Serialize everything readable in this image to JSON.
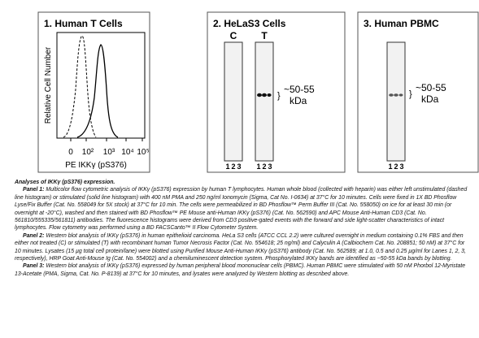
{
  "panels": [
    {
      "title": "1. Human T Cells",
      "y_label": "Relative Cell Number",
      "x_label": "PE IKKγ (pS376)",
      "x_ticks": [
        "0",
        "10²",
        "10³",
        "10⁴",
        "10⁵"
      ]
    },
    {
      "title": "2. HeLaS3 Cells",
      "lane_groups": [
        "C",
        "T"
      ],
      "lanes": [
        "1",
        "2",
        "3"
      ],
      "band_label": [
        "~50-55",
        "kDa"
      ],
      "brace": "}"
    },
    {
      "title": "3. Human PBMC",
      "lanes": [
        "1",
        "2",
        "3"
      ],
      "band_label": [
        "~50-55",
        "kDa"
      ],
      "brace": "}"
    }
  ],
  "caption": {
    "title": "Analyses of IKKγ (pS376) expression.",
    "paragraphs": [
      {
        "label": "Panel 1:",
        "text": "Multicolor flow cytometric analysis of IKKγ (pS376) expression by human T lymphocytes. Human whole blood (collected with heparin) was either left unstimulated (dashed line histogram) or stimulated (solid line histogram) with 400 nM PMA and 250 ng/ml Ionomycin (Sigma, Cat No. I-0634) at 37°C for 10 minutes. Cells were fixed in 1X BD Phosflow Lyse/Fix Buffer (Cat. No. 558049 for 5X stock) at 37°C for 10 min. The cells were permeabilized in BD Phosflow™ Perm Buffer III (Cat. No. 558050) on ice for at least 30 min (or overnight at -20°C), washed and then stained with BD Phosflow™ PE Mouse anti-Human IKKγ (pS376) (Cat. No. 562590) and APC Mouse Anti-Human CD3 (Cat. No. 561810/555335/561811) antibodies. The fluorescence histograms were derived from CD3 positive-gated events with the forward and side light-scatter characteristics of intact lymphocytes. Flow cytometry was performed using a BD FACSCanto™ II Flow Cytometer System."
      },
      {
        "label": "Panel 2:",
        "text": "Western blot analysis of IKKγ (pS376) in human epithelioid carcinoma. HeLa S3 cells (ATCC CCL 2.2) were cultured overnight in medium containing 0.1% FBS and then either not treated (C) or stimulated (T) with recombinant human Tumor Necrosis Factor (Cat. No. 554618; 25 ng/ml) and Calyculin A (Calbiochem Cat. No. 208851; 50 nM) at 37°C for 10 minutes. Lysates (15 µg total cell protein/lane) were blotted using Purified Mouse Anti-Human IKKγ (pS376) antibody (Cat. No. 562589; at 1.0, 0.5 and 0.25 µg/ml for Lanes 1, 2, 3, respectively), HRP Goat Anti-Mouse Ig (Cat. No. 554002) and a chemiluminescent detection system. Phosphorylated IKKγ bands are identified as ~50-55 kDa bands by blotting."
      },
      {
        "label": "Panel 3:",
        "text": "Western blot analysis of IKKγ (pS376) expressed by human peripheral blood mononuclear cells (PBMC). Human PBMC were stimulated with 50 nM Phorbol 12-Myristate 13-Acetate (PMA, Sigma, Cat. No. P-8139) at 37°C for 10 minutes, and lysates were analyzed by Western blotting as described above."
      }
    ]
  }
}
